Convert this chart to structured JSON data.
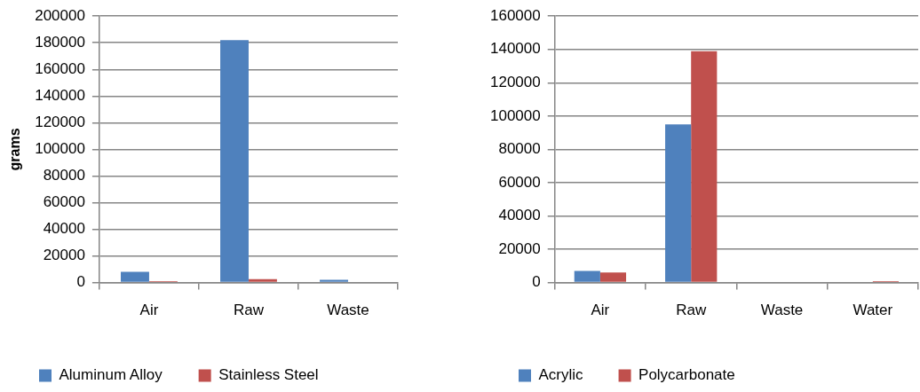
{
  "chart_data": [
    {
      "type": "bar",
      "ylabel": "grams",
      "categories": [
        "Air",
        "Raw",
        "Waste"
      ],
      "series": [
        {
          "name": "Aluminum Alloy",
          "color": "#4f81bd",
          "values": [
            8000,
            182000,
            2000
          ]
        },
        {
          "name": "Stainless Steel",
          "color": "#c0504d",
          "values": [
            1000,
            2500,
            0
          ]
        }
      ],
      "ylim": [
        0,
        200000
      ],
      "yticks": [
        0,
        20000,
        40000,
        60000,
        80000,
        100000,
        120000,
        140000,
        160000,
        180000,
        200000
      ],
      "grid": "y",
      "legend": "bottom"
    },
    {
      "type": "bar",
      "categories": [
        "Air",
        "Raw",
        "Waste",
        "Water"
      ],
      "series": [
        {
          "name": "Acrylic",
          "color": "#4f81bd",
          "values": [
            7000,
            95000,
            0,
            0
          ]
        },
        {
          "name": "Polycarbonate",
          "color": "#c0504d",
          "values": [
            6000,
            139000,
            0,
            800
          ]
        }
      ],
      "ylim": [
        0,
        160000
      ],
      "yticks": [
        0,
        20000,
        40000,
        60000,
        80000,
        100000,
        120000,
        140000,
        160000
      ],
      "grid": "y",
      "legend": "bottom"
    }
  ]
}
